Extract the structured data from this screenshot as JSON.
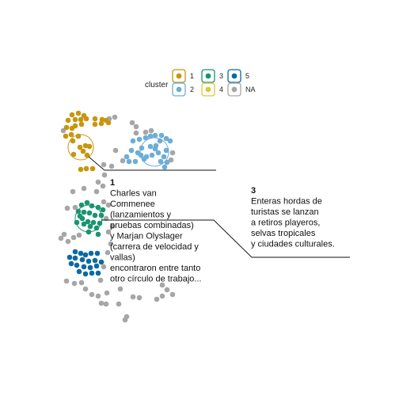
{
  "chart_data": {
    "type": "scatter",
    "legend": {
      "title": "cluster",
      "entries": [
        {
          "label": "1",
          "color": "#C8960E"
        },
        {
          "label": "2",
          "color": "#6CAED6"
        },
        {
          "label": "3",
          "color": "#1A9470"
        },
        {
          "label": "4",
          "color": "#E0C53A"
        },
        {
          "label": "5",
          "color": "#0B6AA2"
        },
        {
          "label": "NA",
          "color": "#A6A6A6"
        }
      ],
      "placement": "top-center"
    },
    "axes_visible": false,
    "grid": false,
    "series": [
      {
        "name": "1",
        "color": "#C8960E",
        "points": [
          [
            91,
            145
          ],
          [
            99,
            143
          ],
          [
            106,
            146
          ],
          [
            86,
            152
          ],
          [
            95,
            151
          ],
          [
            102,
            151
          ],
          [
            109,
            150
          ],
          [
            120,
            150
          ],
          [
            129,
            151
          ],
          [
            134,
            152
          ],
          [
            120,
            157
          ],
          [
            128,
            156
          ],
          [
            137,
            155
          ],
          [
            84,
            161
          ],
          [
            91,
            162
          ],
          [
            95,
            159
          ],
          [
            103,
            157
          ],
          [
            83,
            172
          ],
          [
            90,
            170
          ],
          [
            99,
            172
          ],
          [
            92,
            178
          ],
          [
            101,
            186
          ],
          [
            105,
            191
          ],
          [
            108,
            184
          ],
          [
            113,
            185
          ],
          [
            110,
            196
          ],
          [
            93,
            195
          ],
          [
            109,
            213
          ],
          [
            117,
            213
          ],
          [
            102,
            214
          ]
        ]
      },
      {
        "name": "2",
        "color": "#6CAED6",
        "points": [
          [
            168,
            178
          ],
          [
            176,
            176
          ],
          [
            184,
            174
          ],
          [
            190,
            172
          ],
          [
            196,
            171
          ],
          [
            204,
            171
          ],
          [
            210,
            175
          ],
          [
            215,
            178
          ],
          [
            202,
            178
          ],
          [
            197,
            184
          ],
          [
            190,
            185
          ],
          [
            179,
            187
          ],
          [
            174,
            193
          ],
          [
            166,
            190
          ],
          [
            160,
            198
          ],
          [
            163,
            204
          ],
          [
            171,
            204
          ],
          [
            178,
            196
          ],
          [
            185,
            198
          ],
          [
            192,
            196
          ],
          [
            200,
            193
          ],
          [
            210,
            190
          ],
          [
            207,
            198
          ],
          [
            211,
            205
          ],
          [
            203,
            204
          ],
          [
            208,
            211
          ],
          [
            196,
            188
          ],
          [
            182,
            201
          ]
        ]
      },
      {
        "name": "3",
        "color": "#1A9470",
        "points": [
          [
            103,
            259
          ],
          [
            110,
            256
          ],
          [
            116,
            260
          ],
          [
            124,
            262
          ],
          [
            130,
            265
          ],
          [
            99,
            267
          ],
          [
            106,
            268
          ],
          [
            113,
            269
          ],
          [
            120,
            272
          ],
          [
            128,
            272
          ],
          [
            104,
            276
          ],
          [
            111,
            280
          ],
          [
            118,
            281
          ],
          [
            122,
            288
          ],
          [
            114,
            286
          ],
          [
            106,
            283
          ],
          [
            126,
            282
          ],
          [
            101,
            273
          ],
          [
            97,
            281
          ],
          [
            112,
            293
          ],
          [
            124,
            296
          ]
        ]
      },
      {
        "name": "5",
        "color": "#0B6AA2",
        "points": [
          [
            95,
            318
          ],
          [
            102,
            320
          ],
          [
            108,
            322
          ],
          [
            115,
            320
          ],
          [
            123,
            320
          ],
          [
            88,
            325
          ],
          [
            95,
            326
          ],
          [
            104,
            328
          ],
          [
            112,
            330
          ],
          [
            120,
            329
          ],
          [
            128,
            331
          ],
          [
            90,
            333
          ],
          [
            97,
            335
          ],
          [
            106,
            337
          ],
          [
            114,
            338
          ],
          [
            122,
            336
          ],
          [
            100,
            343
          ],
          [
            108,
            346
          ],
          [
            116,
            345
          ],
          [
            124,
            345
          ]
        ]
      },
      {
        "name": "NA",
        "color": "#A6A6A6",
        "points": [
          [
            80,
            165
          ],
          [
            138,
            150
          ],
          [
            145,
            148
          ],
          [
            167,
            155
          ],
          [
            172,
            160
          ],
          [
            172,
            168
          ],
          [
            131,
            208
          ],
          [
            141,
            210
          ],
          [
            155,
            203
          ],
          [
            146,
            190
          ],
          [
            184,
            167
          ],
          [
            191,
            165
          ],
          [
            216,
            202
          ],
          [
            218,
            193
          ],
          [
            132,
            221
          ],
          [
            124,
            230
          ],
          [
            130,
            235
          ],
          [
            122,
            242
          ],
          [
            106,
            238
          ],
          [
            92,
            242
          ],
          [
            85,
            263
          ],
          [
            95,
            262
          ],
          [
            131,
            255
          ],
          [
            137,
            259
          ],
          [
            100,
            297
          ],
          [
            93,
            300
          ],
          [
            86,
            305
          ],
          [
            81,
            296
          ],
          [
            77,
            301
          ],
          [
            137,
            293
          ],
          [
            142,
            286
          ],
          [
            134,
            276
          ],
          [
            140,
            308
          ],
          [
            136,
            319
          ],
          [
            131,
            337
          ],
          [
            84,
            355
          ],
          [
            94,
            358
          ],
          [
            103,
            357
          ],
          [
            108,
            365
          ],
          [
            127,
            354
          ],
          [
            135,
            370
          ],
          [
            152,
            365
          ],
          [
            116,
            372
          ],
          [
            124,
            374
          ],
          [
            128,
            383
          ],
          [
            134,
            384
          ],
          [
            168,
            375
          ],
          [
            176,
            376
          ],
          [
            198,
            378
          ],
          [
            205,
            374
          ],
          [
            150,
            384
          ],
          [
            160,
            400
          ],
          [
            158,
            404
          ],
          [
            205,
            360
          ],
          [
            211,
            366
          ],
          [
            218,
            372
          ]
        ]
      }
    ],
    "highlight_circles": [
      {
        "cx": 102,
        "cy": 186,
        "r": 16,
        "color": "#C8960E"
      },
      {
        "cx": 195,
        "cy": 192,
        "r": 18,
        "color": "#6CAED6"
      },
      {
        "cx": 112,
        "cy": 276,
        "r": 17,
        "color": "#1A9470"
      }
    ],
    "annotations": [
      {
        "number": "1",
        "lines": [
          "Charles van",
          "Commenee",
          "(lanzamientos y",
          "pruebas combinadas)",
          "y Marjan Olyslager",
          "(carrera de velocidad y",
          "vallas)",
          "encontraron entre tanto",
          "otro círculo de trabajo..."
        ]
      },
      {
        "number": "3",
        "lines": [
          "Enteras hordas de",
          "turistas se lanzan",
          "a retiros playeros,",
          "selvas tropicales",
          "y ciudades culturales."
        ]
      }
    ]
  }
}
